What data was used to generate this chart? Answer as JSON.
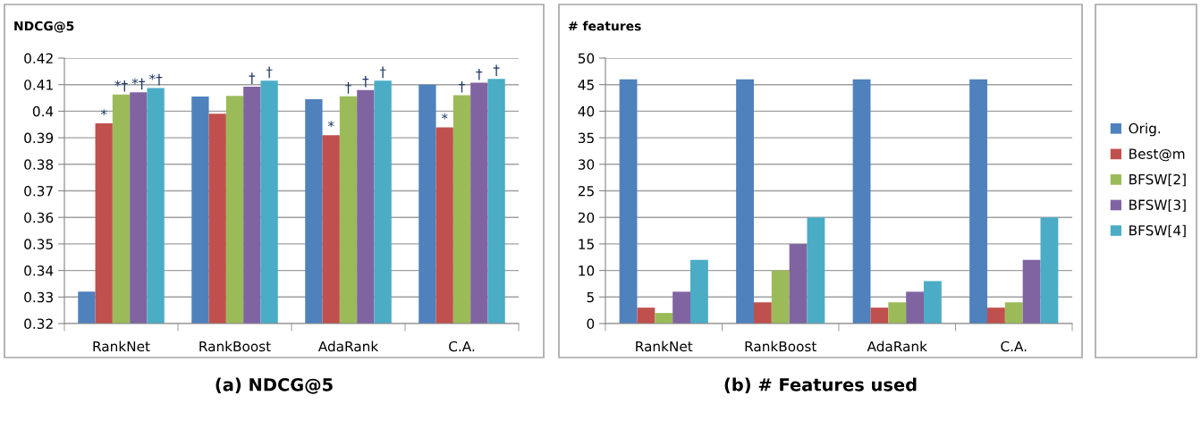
{
  "chart_data": [
    {
      "type": "bar",
      "title": "(a) NDCG@5",
      "ylabel": "NDCG@5",
      "categories": [
        "RankNet",
        "RankBoost",
        "AdaRank",
        "C.A."
      ],
      "ylim": [
        0.32,
        0.42
      ],
      "yticks": [
        {
          "value": 0.32,
          "label": "0.32"
        },
        {
          "value": 0.33,
          "label": "0.33"
        },
        {
          "value": 0.34,
          "label": "0.34"
        },
        {
          "value": 0.35,
          "label": "0.35"
        },
        {
          "value": 0.36,
          "label": "0.36"
        },
        {
          "value": 0.37,
          "label": "0.37"
        },
        {
          "value": 0.38,
          "label": "0.38"
        },
        {
          "value": 0.39,
          "label": "0.39"
        },
        {
          "value": 0.4,
          "label": "0.4"
        },
        {
          "value": 0.41,
          "label": "0.41"
        },
        {
          "value": 0.42,
          "label": "0.42"
        }
      ],
      "grid": "y",
      "legend": false,
      "series": [
        {
          "color": "#4f81bd",
          "values": [
            0.332,
            0.4055,
            0.4045,
            0.41
          ]
        },
        {
          "color": "#c0504d",
          "values": [
            0.3954,
            0.399,
            0.391,
            0.3939
          ],
          "value_labels": [
            "*",
            null,
            "*",
            "*"
          ]
        },
        {
          "color": "#9bbb59",
          "values": [
            0.4063,
            0.4058,
            0.4056,
            0.406
          ],
          "value_labels": [
            "*†",
            null,
            "†",
            "†"
          ]
        },
        {
          "color": "#8064a2",
          "values": [
            0.4071,
            0.4092,
            0.408,
            0.4107
          ],
          "value_labels": [
            "*†",
            "†",
            "†",
            "†"
          ]
        },
        {
          "color": "#4bacc6",
          "values": [
            0.4087,
            0.4115,
            0.4115,
            0.4122
          ],
          "value_labels": [
            "*†",
            "†",
            "†",
            "†"
          ]
        }
      ]
    },
    {
      "type": "bar",
      "title": "(b) # Features used",
      "ylabel": "# features",
      "categories": [
        "RankNet",
        "RankBoost",
        "AdaRank",
        "C.A."
      ],
      "ylim": [
        0,
        50
      ],
      "yticks": [
        0,
        5,
        10,
        15,
        20,
        25,
        30,
        35,
        40,
        45,
        50
      ],
      "grid": "y",
      "legend": "right",
      "series": [
        {
          "name": "Orig.",
          "color": "#4f81bd",
          "values": [
            46,
            46,
            46,
            46
          ]
        },
        {
          "name": "Best@m",
          "color": "#c0504d",
          "values": [
            3,
            4,
            3,
            3
          ]
        },
        {
          "name": "BFSW[2]",
          "color": "#9bbb59",
          "values": [
            2,
            10,
            4,
            4
          ]
        },
        {
          "name": "BFSW[3]",
          "color": "#8064a2",
          "values": [
            6,
            15,
            6,
            12
          ]
        },
        {
          "name": "BFSW[4]",
          "color": "#4bacc6",
          "values": [
            12,
            20,
            8,
            20
          ]
        }
      ]
    }
  ]
}
